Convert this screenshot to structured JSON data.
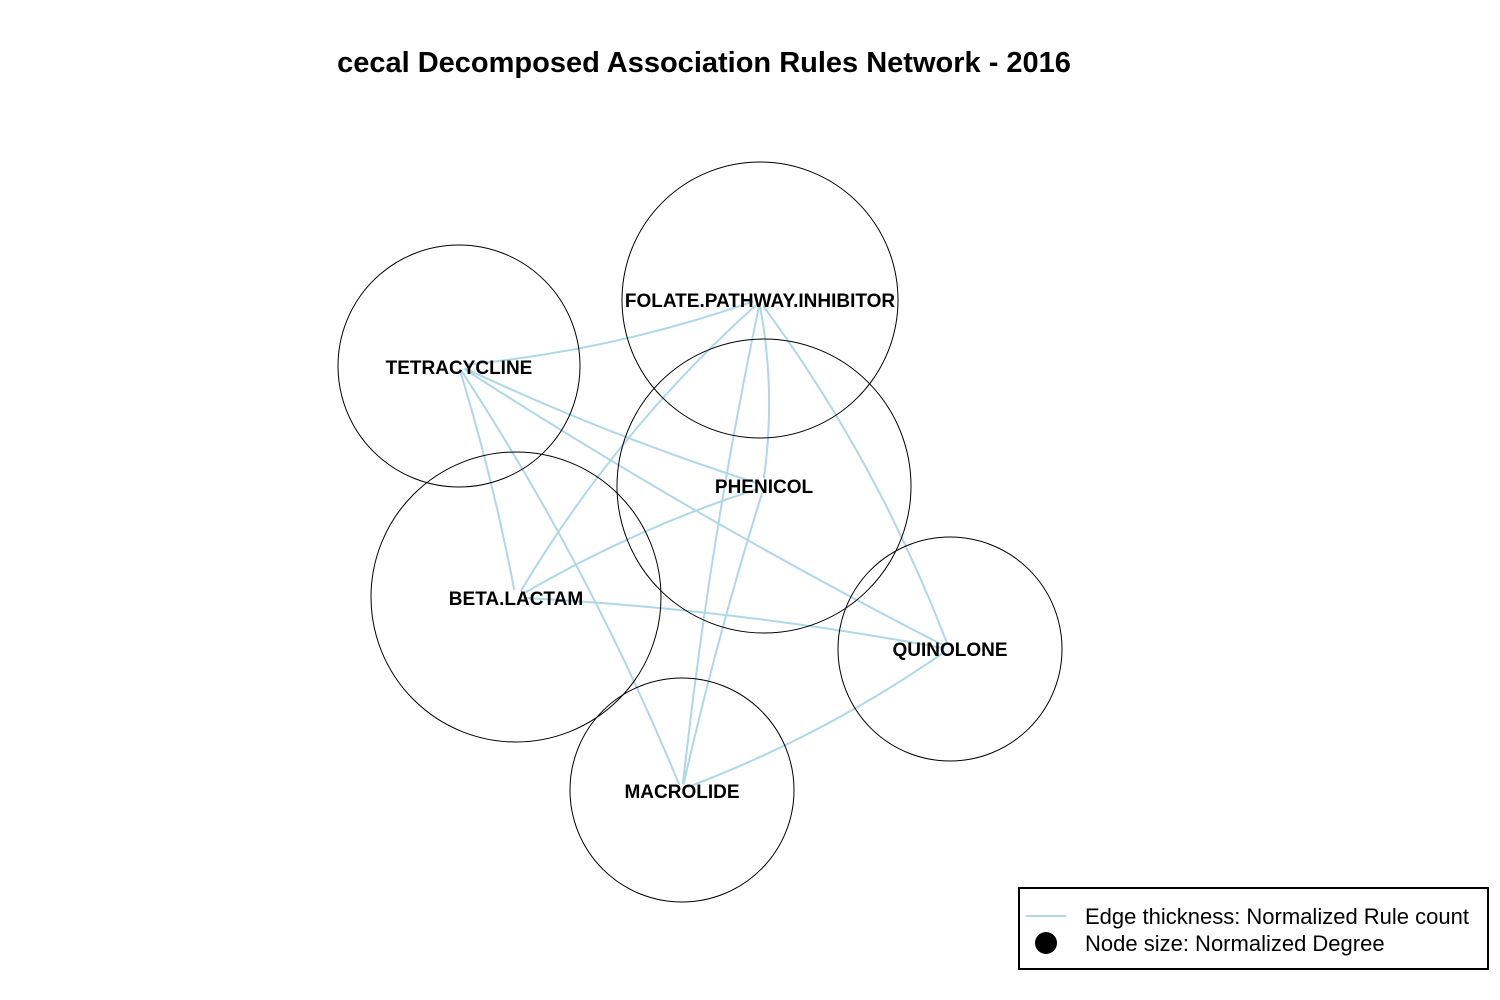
{
  "title": "cecal Decomposed Association Rules Network - 2016",
  "colors": {
    "edge": "#add8e6",
    "node_stroke": "#000000",
    "background": "#ffffff"
  },
  "nodes": [
    {
      "id": "folate",
      "label": "FOLATE.PATHWAY.INHIBITOR"
    },
    {
      "id": "tetracycline",
      "label": "TETRACYCLINE"
    },
    {
      "id": "phenicol",
      "label": "PHENICOL"
    },
    {
      "id": "beta_lactam",
      "label": "BETA.LACTAM"
    },
    {
      "id": "quinolone",
      "label": "QUINOLONE"
    },
    {
      "id": "macrolide",
      "label": "MACROLIDE"
    }
  ],
  "edges": [
    {
      "source": "tetracycline",
      "target": "folate"
    },
    {
      "source": "tetracycline",
      "target": "phenicol"
    },
    {
      "source": "tetracycline",
      "target": "quinolone"
    },
    {
      "source": "tetracycline",
      "target": "beta_lactam"
    },
    {
      "source": "tetracycline",
      "target": "macrolide"
    },
    {
      "source": "folate",
      "target": "phenicol"
    },
    {
      "source": "folate",
      "target": "beta_lactam"
    },
    {
      "source": "folate",
      "target": "quinolone"
    },
    {
      "source": "folate",
      "target": "macrolide"
    },
    {
      "source": "phenicol",
      "target": "beta_lactam"
    },
    {
      "source": "phenicol",
      "target": "macrolide"
    },
    {
      "source": "beta_lactam",
      "target": "quinolone"
    },
    {
      "source": "quinolone",
      "target": "macrolide"
    }
  ],
  "legend": {
    "edge_label": "Edge thickness: Normalized Rule count",
    "node_label": "Node size: Normalized Degree"
  }
}
